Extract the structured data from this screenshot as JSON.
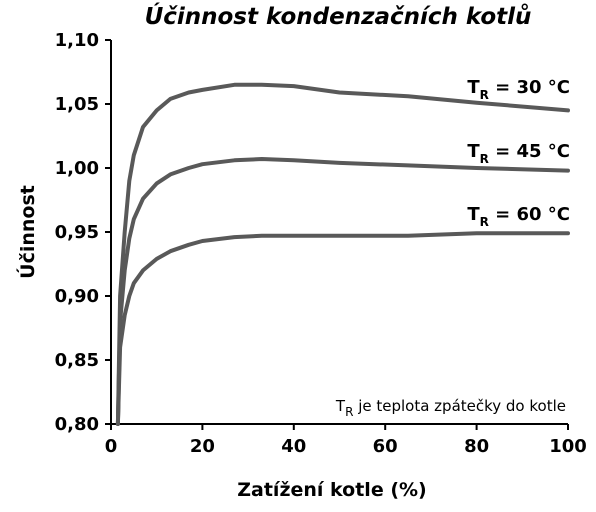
{
  "chart_data": {
    "type": "line",
    "title": "Účinnost kondenzačních kotlů",
    "xlabel": "Zatížení kotle (%)",
    "ylabel": "Účinnost",
    "xlim": [
      0,
      100
    ],
    "ylim": [
      0.8,
      1.1
    ],
    "x_ticks": [
      "0",
      "20",
      "40",
      "60",
      "80",
      "100"
    ],
    "y_ticks": [
      "0,80",
      "0,85",
      "0,90",
      "0,95",
      "1,00",
      "1,05",
      "1,10"
    ],
    "grid": false,
    "annotation": {
      "main": "T",
      "sub": "R",
      "rest": " je teplota zpátečky do kotle"
    },
    "series": [
      {
        "name": "T_R = 30 °C",
        "label_main": "T",
        "label_sub": "R",
        "label_rest": " = 30 °C",
        "color": "#595959",
        "x": [
          1.5,
          2,
          3,
          4,
          5,
          7,
          10,
          13,
          17,
          20,
          27,
          33,
          40,
          50,
          65,
          80,
          100
        ],
        "y": [
          0.8,
          0.9,
          0.95,
          0.99,
          1.01,
          1.032,
          1.045,
          1.054,
          1.059,
          1.061,
          1.065,
          1.065,
          1.064,
          1.059,
          1.056,
          1.051,
          1.045
        ]
      },
      {
        "name": "T_R = 45 °C",
        "label_main": "T",
        "label_sub": "R",
        "label_rest": " = 45 °C",
        "color": "#595959",
        "x": [
          1.5,
          2,
          3,
          4,
          5,
          7,
          10,
          13,
          17,
          20,
          27,
          33,
          40,
          50,
          65,
          80,
          100
        ],
        "y": [
          0.8,
          0.88,
          0.92,
          0.945,
          0.96,
          0.976,
          0.988,
          0.995,
          1.0,
          1.003,
          1.006,
          1.007,
          1.006,
          1.004,
          1.002,
          1.0,
          0.998
        ]
      },
      {
        "name": "T_R = 60 °C",
        "label_main": "T",
        "label_sub": "R",
        "label_rest": " = 60 °C",
        "color": "#595959",
        "x": [
          1.5,
          2,
          3,
          4,
          5,
          7,
          10,
          13,
          17,
          20,
          27,
          33,
          40,
          50,
          65,
          80,
          100
        ],
        "y": [
          0.8,
          0.86,
          0.885,
          0.9,
          0.91,
          0.92,
          0.929,
          0.935,
          0.94,
          0.943,
          0.946,
          0.947,
          0.947,
          0.947,
          0.947,
          0.949,
          0.949
        ]
      }
    ]
  }
}
